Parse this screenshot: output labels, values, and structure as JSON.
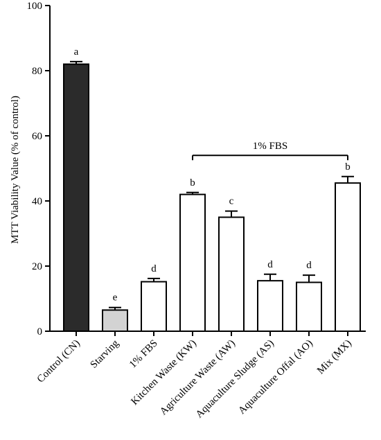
{
  "chart_data": {
    "type": "bar",
    "ylabel": "MTT Viability Value (% of control)",
    "ylim": [
      0,
      100
    ],
    "yticks": [
      0,
      20,
      40,
      60,
      80,
      100
    ],
    "grid": false,
    "categories": [
      "Control (CN)",
      "Starving",
      "1% FBS",
      "Kitchen Waste (KW)",
      "Agriculture Waste (AW)",
      "Aquaculture Sludge (AS)",
      "Aquaculture Offal (AO)",
      "Mix (MX)"
    ],
    "values": [
      82,
      6.5,
      15.2,
      42,
      35,
      15.5,
      15,
      45.5
    ],
    "errors": [
      0.8,
      0.8,
      1.0,
      0.6,
      1.9,
      2.0,
      2.2,
      2.0
    ],
    "significance_letters": [
      "a",
      "e",
      "d",
      "b",
      "c",
      "d",
      "d",
      "b"
    ],
    "bar_colors": [
      "#2b2b2b",
      "#d3d3d3",
      "#ffffff",
      "#ffffff",
      "#ffffff",
      "#ffffff",
      "#ffffff",
      "#ffffff"
    ],
    "annotation": {
      "text": "1% FBS",
      "y": 54,
      "from_category_index": 3,
      "to_category_index": 7
    }
  }
}
